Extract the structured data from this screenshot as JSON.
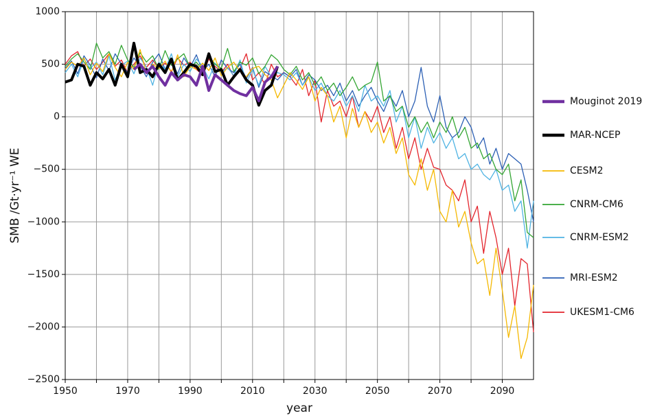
{
  "chart_data": {
    "type": "line",
    "ylabel": "SMB /Gt·yr⁻¹ WE",
    "xlabel": "year",
    "xlim": [
      1950,
      2100
    ],
    "ylim": [
      -2500,
      1000
    ],
    "xticks": [
      1950,
      1970,
      1990,
      2010,
      2030,
      2050,
      2070,
      2090
    ],
    "xminorticks": [
      1960,
      1980,
      2000,
      2020,
      2040,
      2060,
      2080
    ],
    "yticks": [
      {
        "value": -2500,
        "label": "−2500"
      },
      {
        "value": -2000,
        "label": "−2000"
      },
      {
        "value": -1500,
        "label": "−1500"
      },
      {
        "value": -1000,
        "label": "−1000"
      },
      {
        "value": -500,
        "label": "−500"
      },
      0,
      500,
      1000
    ],
    "grid": true,
    "legend": "right",
    "x": [
      1950,
      1952,
      1954,
      1956,
      1958,
      1960,
      1962,
      1964,
      1966,
      1968,
      1970,
      1972,
      1974,
      1976,
      1978,
      1980,
      1982,
      1984,
      1986,
      1988,
      1990,
      1992,
      1994,
      1996,
      1998,
      2000,
      2002,
      2004,
      2006,
      2008,
      2010,
      2012,
      2014,
      2016,
      2018,
      2020,
      2022,
      2024,
      2026,
      2028,
      2030,
      2032,
      2034,
      2036,
      2038,
      2040,
      2042,
      2044,
      2046,
      2048,
      2050,
      2052,
      2054,
      2056,
      2058,
      2060,
      2062,
      2064,
      2066,
      2068,
      2070,
      2072,
      2074,
      2076,
      2078,
      2080,
      2082,
      2084,
      2086,
      2088,
      2090,
      2092,
      2094,
      2096,
      2098,
      2100
    ],
    "series": [
      {
        "name": "Mouginot 2019",
        "color": "#7030a0",
        "width": 4,
        "x": [
          1972,
          1974,
          1976,
          1978,
          1980,
          1982,
          1984,
          1986,
          1988,
          1990,
          1992,
          1994,
          1996,
          1998,
          2000,
          2002,
          2004,
          2006,
          2008,
          2010,
          2012,
          2014,
          2016,
          2018
        ],
        "values": [
          450,
          500,
          420,
          480,
          380,
          300,
          420,
          350,
          400,
          380,
          300,
          480,
          250,
          400,
          350,
          300,
          250,
          220,
          200,
          280,
          150,
          330,
          380,
          480
        ]
      },
      {
        "name": "MAR-NCEP",
        "color": "#000000",
        "width": 4,
        "x": [
          1950,
          1952,
          1954,
          1956,
          1958,
          1960,
          1962,
          1964,
          1966,
          1968,
          1970,
          1972,
          1974,
          1976,
          1978,
          1980,
          1982,
          1984,
          1986,
          1988,
          1990,
          1992,
          1994,
          1996,
          1998,
          2000,
          2002,
          2004,
          2006,
          2008,
          2010,
          2012,
          2014,
          2016,
          2018
        ],
        "values": [
          330,
          350,
          500,
          480,
          300,
          420,
          360,
          450,
          300,
          500,
          380,
          700,
          420,
          450,
          380,
          500,
          420,
          550,
          350,
          420,
          500,
          480,
          400,
          600,
          430,
          450,
          300,
          380,
          450,
          350,
          300,
          110,
          250,
          300,
          480
        ]
      },
      {
        "name": "CESM2",
        "color": "#f5b800",
        "width": 1.3,
        "values": [
          450,
          520,
          480,
          560,
          400,
          510,
          430,
          600,
          470,
          380,
          520,
          450,
          640,
          410,
          500,
          460,
          530,
          420,
          590,
          380,
          480,
          450,
          510,
          440,
          560,
          390,
          470,
          520,
          430,
          380,
          460,
          480,
          400,
          350,
          180,
          300,
          420,
          350,
          260,
          380,
          150,
          280,
          200,
          -50,
          100,
          -200,
          80,
          -100,
          50,
          -150,
          -50,
          -250,
          -100,
          -350,
          -200,
          -550,
          -650,
          -400,
          -700,
          -500,
          -900,
          -1000,
          -700,
          -1050,
          -900,
          -1200,
          -1400,
          -1350,
          -1700,
          -1250,
          -1650,
          -2100,
          -1800,
          -2300,
          -2100,
          -1600
        ]
      },
      {
        "name": "CNRM-CM6",
        "color": "#33a532",
        "width": 1.3,
        "values": [
          480,
          550,
          600,
          520,
          450,
          700,
          560,
          620,
          500,
          680,
          540,
          470,
          610,
          520,
          580,
          450,
          630,
          490,
          550,
          600,
          470,
          520,
          440,
          580,
          500,
          460,
          650,
          430,
          520,
          490,
          560,
          410,
          480,
          590,
          540,
          450,
          400,
          480,
          350,
          420,
          300,
          380,
          250,
          320,
          200,
          280,
          380,
          250,
          300,
          330,
          520,
          150,
          200,
          50,
          100,
          -100,
          0,
          -150,
          -50,
          -200,
          -50,
          -150,
          0,
          -200,
          -100,
          -300,
          -250,
          -400,
          -350,
          -500,
          -550,
          -450,
          -800,
          -600,
          -1100,
          -1150
        ]
      },
      {
        "name": "CNRM-ESM2",
        "color": "#4fb3e3",
        "width": 1.3,
        "values": [
          420,
          500,
          380,
          550,
          460,
          520,
          400,
          580,
          350,
          490,
          530,
          410,
          560,
          470,
          300,
          520,
          450,
          600,
          380,
          500,
          430,
          550,
          480,
          360,
          510,
          420,
          470,
          390,
          540,
          320,
          450,
          300,
          480,
          380,
          420,
          400,
          350,
          420,
          300,
          380,
          250,
          320,
          200,
          150,
          250,
          100,
          200,
          50,
          300,
          150,
          200,
          100,
          250,
          -50,
          100,
          -200,
          0,
          -300,
          -100,
          -250,
          -150,
          -300,
          -200,
          -400,
          -350,
          -500,
          -450,
          -550,
          -600,
          -500,
          -700,
          -650,
          -900,
          -800,
          -1250,
          -800
        ]
      },
      {
        "name": "MRI-ESM2",
        "color": "#2b5fb4",
        "width": 1.3,
        "values": [
          460,
          530,
          410,
          580,
          490,
          370,
          550,
          440,
          600,
          500,
          420,
          560,
          480,
          380,
          520,
          600,
          450,
          530,
          410,
          560,
          470,
          590,
          430,
          500,
          380,
          540,
          460,
          420,
          500,
          360,
          470,
          280,
          430,
          390,
          350,
          420,
          380,
          450,
          300,
          400,
          350,
          250,
          300,
          200,
          320,
          150,
          250,
          100,
          200,
          280,
          150,
          50,
          200,
          100,
          250,
          0,
          150,
          470,
          100,
          -50,
          200,
          -100,
          -200,
          -150,
          0,
          -100,
          -300,
          -200,
          -450,
          -300,
          -500,
          -350,
          -400,
          -450,
          -700,
          -1000
        ]
      },
      {
        "name": "UKESM1-CM6",
        "color": "#e3232b",
        "width": 1.3,
        "values": [
          500,
          580,
          620,
          480,
          550,
          450,
          520,
          600,
          480,
          540,
          420,
          500,
          580,
          470,
          540,
          460,
          510,
          430,
          560,
          490,
          520,
          450,
          400,
          550,
          480,
          420,
          500,
          380,
          460,
          600,
          350,
          420,
          300,
          500,
          380,
          420,
          380,
          300,
          450,
          200,
          350,
          -50,
          250,
          100,
          150,
          0,
          200,
          -100,
          50,
          -50,
          100,
          -150,
          0,
          -300,
          -100,
          -400,
          -200,
          -500,
          -300,
          -480,
          -500,
          -650,
          -700,
          -800,
          -600,
          -1000,
          -850,
          -1300,
          -900,
          -1150,
          -1500,
          -1250,
          -1800,
          -1350,
          -1400,
          -2050
        ]
      }
    ]
  }
}
